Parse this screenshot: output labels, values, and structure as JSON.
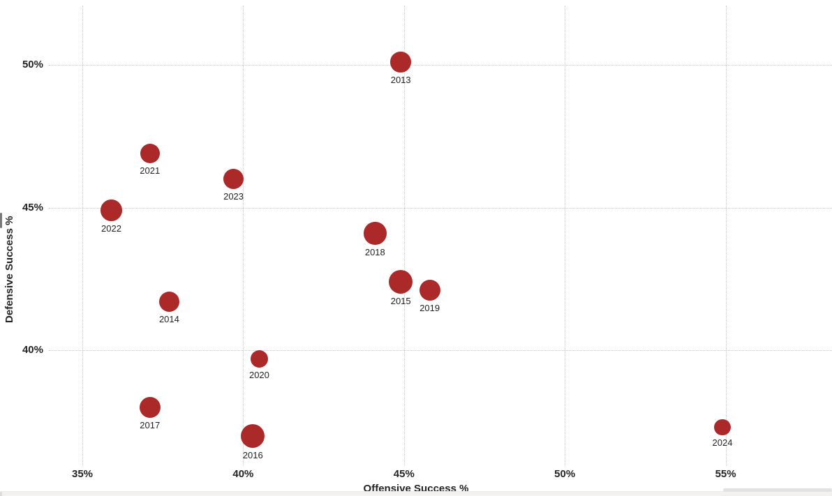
{
  "chart_data": {
    "type": "scatter",
    "title": "",
    "xlabel": "Offensive Success %",
    "ylabel": "Defensive Success %",
    "x_ticks": [
      {
        "value": 35,
        "label": "35%"
      },
      {
        "value": 40,
        "label": "40%"
      },
      {
        "value": 45,
        "label": "45%"
      },
      {
        "value": 50,
        "label": "50%"
      },
      {
        "value": 55,
        "label": "55%"
      }
    ],
    "y_ticks": [
      {
        "value": 40,
        "label": "40%"
      },
      {
        "value": 45,
        "label": "45%"
      },
      {
        "value": 50,
        "label": "50%"
      }
    ],
    "xlim": [
      34.4,
      58.3
    ],
    "ylim": [
      36.0,
      52.3
    ],
    "grid": "dotted",
    "legend": "none",
    "point_color": "#AC2929",
    "tick_label_color": "#252423",
    "point_label_color": "#1f1f1f",
    "points": [
      {
        "label": "2013",
        "x": 44.9,
        "y": 50.1,
        "r": 14.7
      },
      {
        "label": "2014",
        "x": 37.7,
        "y": 41.7,
        "r": 14.5
      },
      {
        "label": "2015",
        "x": 44.9,
        "y": 42.4,
        "r": 17.0
      },
      {
        "label": "2016",
        "x": 40.3,
        "y": 37.0,
        "r": 17.0
      },
      {
        "label": "2017",
        "x": 37.1,
        "y": 38.0,
        "r": 15.0
      },
      {
        "label": "2018",
        "x": 44.1,
        "y": 44.1,
        "r": 16.3
      },
      {
        "label": "2019",
        "x": 45.8,
        "y": 42.1,
        "r": 15.0
      },
      {
        "label": "2020",
        "x": 40.5,
        "y": 39.7,
        "r": 12.5
      },
      {
        "label": "2021",
        "x": 37.1,
        "y": 46.9,
        "r": 14.0
      },
      {
        "label": "2022",
        "x": 35.9,
        "y": 44.9,
        "r": 15.3
      },
      {
        "label": "2023",
        "x": 39.7,
        "y": 46.0,
        "r": 14.5
      },
      {
        "label": "2024",
        "x": 54.9,
        "y": 37.3,
        "r": 11.7
      }
    ]
  }
}
